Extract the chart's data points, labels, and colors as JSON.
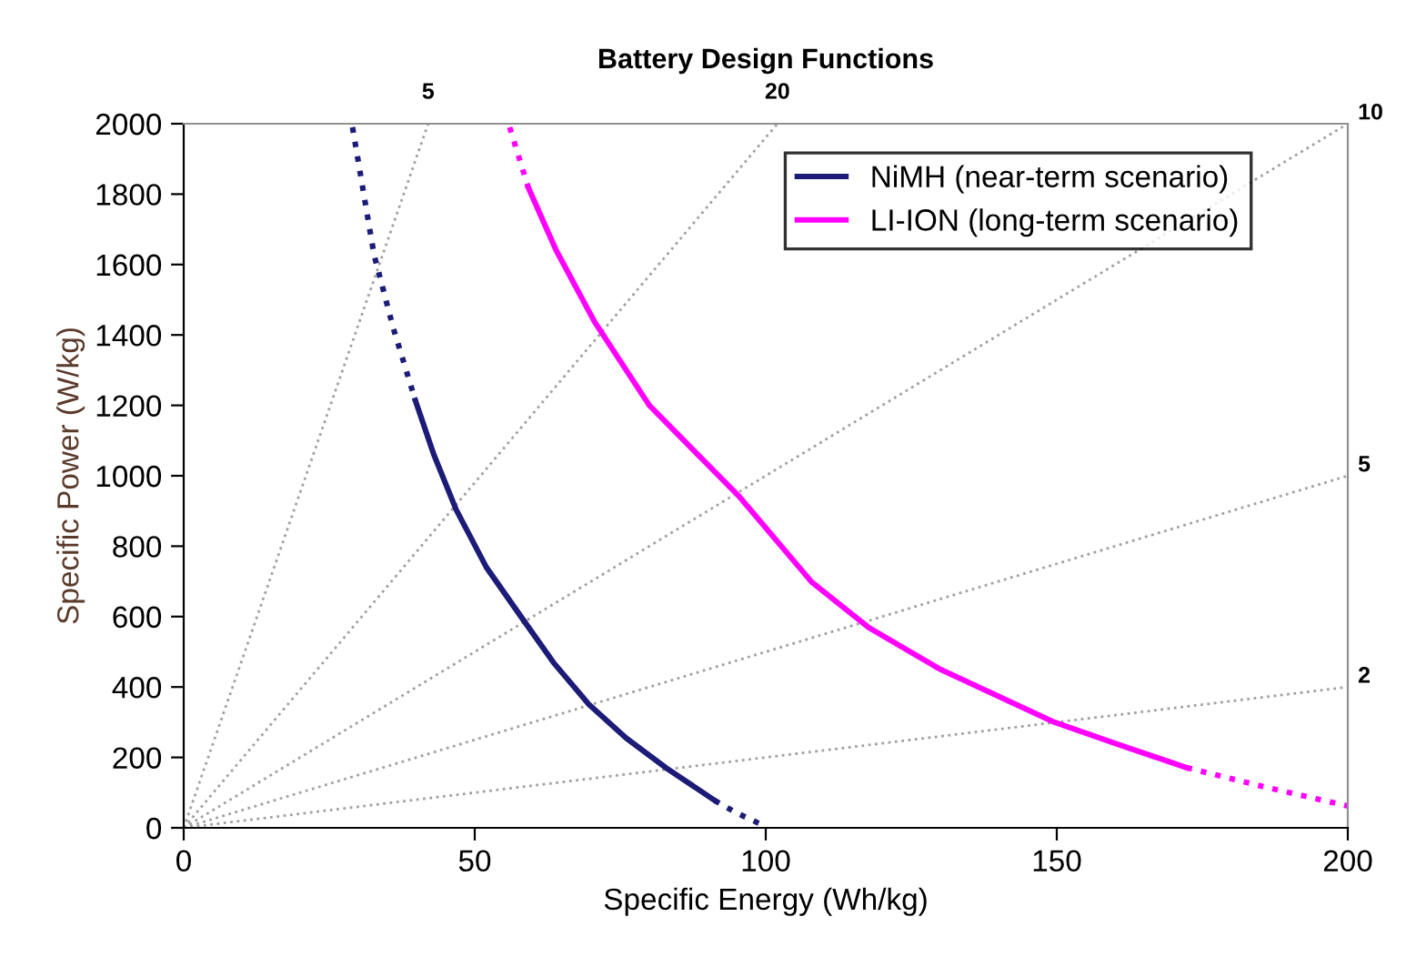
{
  "chart_data": {
    "type": "line",
    "title": "Battery Design Functions",
    "xlabel": "Specific Energy (Wh/kg)",
    "ylabel": "Specific Power (W/kg)",
    "xlim": [
      0,
      200
    ],
    "ylim": [
      0,
      2000
    ],
    "xticks": [
      0,
      50,
      100,
      150,
      200
    ],
    "yticks": [
      0,
      200,
      400,
      600,
      800,
      1000,
      1200,
      1400,
      1600,
      1800,
      2000
    ],
    "grid": false,
    "legend": "top right",
    "marker": "none",
    "series": [
      {
        "color": "#a0a0a0",
        "line_style": "dotted",
        "x": [
          0,
          42
        ],
        "values": [
          0,
          2000
        ]
      },
      {
        "color": "#a0a0a0",
        "line_style": "dotted",
        "x": [
          0,
          102
        ],
        "values": [
          0,
          2000
        ]
      },
      {
        "color": "#a0a0a0",
        "line_style": "dotted",
        "x": [
          0,
          200
        ],
        "values": [
          0,
          2000
        ]
      },
      {
        "color": "#a0a0a0",
        "line_style": "dotted",
        "x": [
          0,
          200
        ],
        "values": [
          0,
          1000
        ]
      },
      {
        "color": "#a0a0a0",
        "line_style": "dotted",
        "x": [
          0,
          200
        ],
        "values": [
          0,
          400
        ]
      },
      {
        "name": "NiMH (near-term scenario)",
        "color": "#1c1c78",
        "line_style": "solid",
        "x": [
          39.8,
          43,
          46.8,
          52,
          58.2,
          63.5,
          69.6,
          76,
          82.9,
          91.2
        ],
        "values": [
          1214,
          1059,
          904,
          740,
          594,
          470,
          351,
          255,
          170,
          78
        ]
      },
      {
        "color": "#1c1c78",
        "line_style": "dotted",
        "x": [
          29,
          32.7,
          36,
          39.8
        ],
        "values": [
          1990,
          1628,
          1420,
          1214
        ]
      },
      {
        "color": "#1c1c78",
        "line_style": "dotted",
        "x": [
          91.2,
          95,
          99.2
        ],
        "values": [
          78,
          42,
          10
        ]
      },
      {
        "name": "LI-ION (long-term scenario)",
        "color": "#ff00ff",
        "line_style": "solid",
        "x": [
          59.2,
          64,
          70.6,
          80,
          95.5,
          107.9,
          117.7,
          130,
          149.6,
          160,
          172.3
        ],
        "values": [
          1819,
          1640,
          1437,
          1200,
          940,
          698,
          569,
          450,
          300,
          240,
          171
        ]
      },
      {
        "color": "#ff00ff",
        "line_style": "dotted",
        "x": [
          56,
          59.2
        ],
        "values": [
          1990,
          1819
        ]
      },
      {
        "color": "#ff00ff",
        "line_style": "dotted",
        "x": [
          172.3,
          186,
          200
        ],
        "values": [
          171,
          115,
          62
        ]
      }
    ],
    "annotations": [
      {
        "text": "5",
        "x": 42,
        "y": 2000
      },
      {
        "text": "20",
        "x": 102,
        "y": 2000
      },
      {
        "text": "10",
        "x": 200,
        "y": 2000
      },
      {
        "text": "5",
        "x": 200,
        "y": 1000
      },
      {
        "text": "2",
        "x": 200,
        "y": 400
      }
    ]
  }
}
